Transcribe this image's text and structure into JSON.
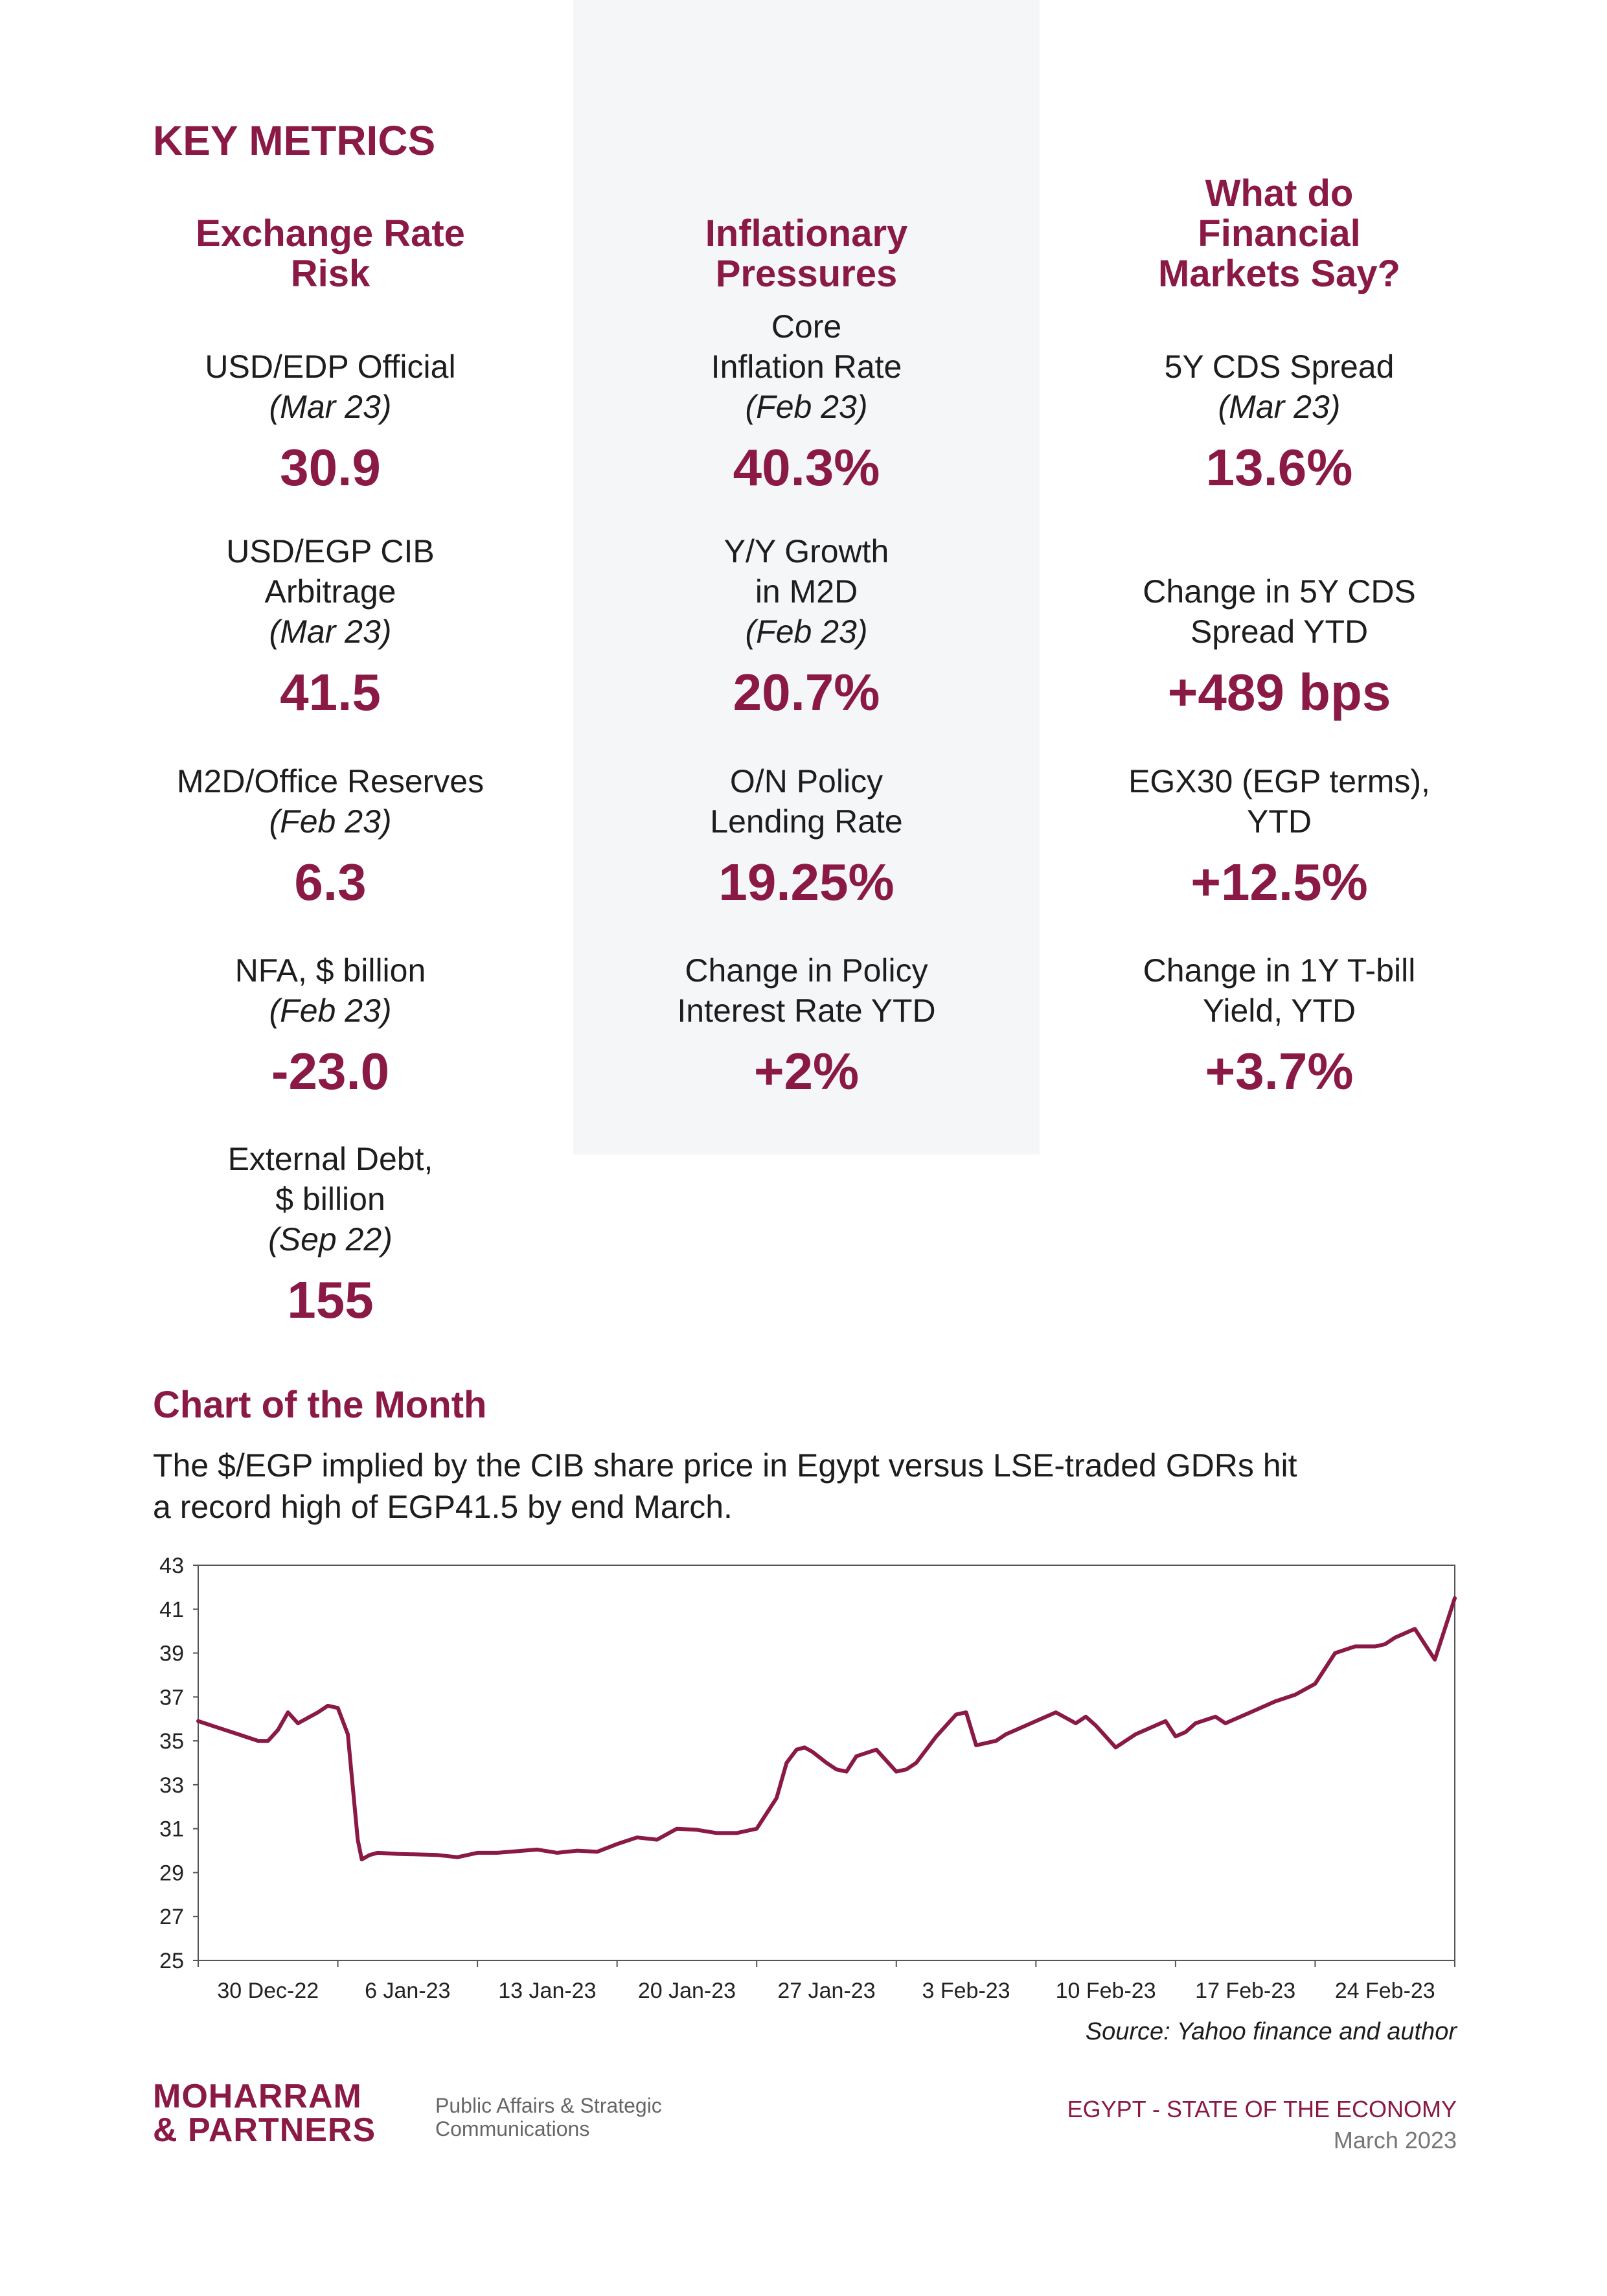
{
  "page": {
    "section_title": "KEY METRICS"
  },
  "columns": [
    {
      "heading": [
        "Exchange Rate",
        "Risk"
      ],
      "metrics": [
        {
          "label": [
            "USD/EDP Official"
          ],
          "date": "(Mar 23)",
          "value": "30.9"
        },
        {
          "label": [
            "USD/EGP CIB",
            "Arbitrage"
          ],
          "date": "(Mar 23)",
          "value": "41.5"
        },
        {
          "label": [
            "M2D/Office Reserves"
          ],
          "date": "(Feb 23)",
          "value": "6.3"
        },
        {
          "label": [
            "NFA, $ billion"
          ],
          "date": "(Feb 23)",
          "value": "-23.0"
        },
        {
          "label": [
            "External Debt,",
            "$ billion"
          ],
          "date": "(Sep 22)",
          "value": "155"
        }
      ]
    },
    {
      "heading": [
        "Inflationary",
        "Pressures"
      ],
      "metrics": [
        {
          "label": [
            "Core",
            "Inflation Rate"
          ],
          "date": "(Feb 23)",
          "value": "40.3%"
        },
        {
          "label": [
            "Y/Y Growth",
            "in M2D"
          ],
          "date": "(Feb 23)",
          "value": "20.7%"
        },
        {
          "label": [
            "O/N Policy",
            "Lending Rate"
          ],
          "date": "",
          "value": "19.25%"
        },
        {
          "label": [
            "Change in Policy",
            "Interest Rate YTD"
          ],
          "date": "",
          "value": "+2%"
        }
      ]
    },
    {
      "heading": [
        "What do",
        "Financial",
        "Markets Say?"
      ],
      "metrics": [
        {
          "label": [
            "5Y CDS Spread"
          ],
          "date": "(Mar 23)",
          "value": "13.6%"
        },
        {
          "label": [
            "Change in 5Y CDS",
            "Spread YTD"
          ],
          "date": "",
          "value": "+489 bps"
        },
        {
          "label": [
            "EGX30 (EGP terms),",
            "YTD"
          ],
          "date": "",
          "value": "+12.5%"
        },
        {
          "label": [
            "Change in 1Y T-bill",
            "Yield, YTD"
          ],
          "date": "",
          "value": "+3.7%"
        }
      ]
    }
  ],
  "chart_section": {
    "title": "Chart of the Month",
    "description_lines": [
      "The $/EGP implied by the CIB share price in Egypt versus LSE-traded GDRs hit",
      "a record high of EGP41.5 by end March."
    ],
    "source": "Source: Yahoo finance and author"
  },
  "chart_data": {
    "type": "line",
    "title": "",
    "xlabel": "",
    "ylabel": "",
    "ylim": [
      25,
      43
    ],
    "y_ticks": [
      25,
      27,
      29,
      31,
      33,
      35,
      37,
      39,
      41,
      43
    ],
    "x_tick_labels": [
      "30 Dec-22",
      "6 Jan-23",
      "13 Jan-23",
      "20 Jan-23",
      "27 Jan-23",
      "3 Feb-23",
      "10 Feb-23",
      "17 Feb-23",
      "24 Feb-23"
    ],
    "line_color": "#8a1a45",
    "grid": false,
    "x_range": [
      0,
      63
    ],
    "series": [
      {
        "x": [
          0,
          1,
          2,
          3,
          3.5,
          4,
          4.5,
          5,
          6,
          6.5,
          7,
          7.5,
          8,
          8.2,
          8.6,
          9,
          10,
          12,
          13,
          14,
          15,
          17,
          18,
          19,
          20,
          21,
          22,
          23,
          24,
          25,
          26,
          27,
          28,
          29,
          29.5,
          30,
          30.4,
          30.8,
          31.5,
          32,
          32.5,
          33,
          34,
          35,
          35.5,
          36,
          37,
          38,
          38.5,
          39,
          40,
          40.5,
          41,
          42,
          43,
          44,
          44.5,
          45,
          46,
          47,
          48,
          48.5,
          49,
          49.5,
          50,
          51,
          51.5,
          52,
          53,
          54,
          55,
          56,
          57,
          58,
          59,
          59.5,
          60,
          61,
          62,
          63
        ],
        "y": [
          35.9,
          35.6,
          35.3,
          35.0,
          35.0,
          35.5,
          36.3,
          35.8,
          36.3,
          36.6,
          36.5,
          35.3,
          30.5,
          29.6,
          29.8,
          29.9,
          29.85,
          29.8,
          29.7,
          29.9,
          29.9,
          30.05,
          29.9,
          30.0,
          29.95,
          30.3,
          30.6,
          30.5,
          31.0,
          30.95,
          30.8,
          30.8,
          31.0,
          32.4,
          34.0,
          34.6,
          34.7,
          34.5,
          34.0,
          33.7,
          33.6,
          34.3,
          34.6,
          33.6,
          33.7,
          34.0,
          35.2,
          36.2,
          36.3,
          34.8,
          35.0,
          35.3,
          35.5,
          35.9,
          36.3,
          35.8,
          36.1,
          35.7,
          34.7,
          35.3,
          35.7,
          35.9,
          35.2,
          35.4,
          35.8,
          36.1,
          35.8,
          36.0,
          36.4,
          36.8,
          37.1,
          37.6,
          39.0,
          39.3,
          39.3,
          39.4,
          39.7,
          40.1,
          38.7,
          41.5
        ]
      }
    ]
  },
  "footer": {
    "logo_line1": "MOHARRAM",
    "logo_line2": "& PARTNERS",
    "tagline_line1": "Public Affairs & Strategic",
    "tagline_line2": "Communications",
    "publication": "EGYPT - STATE OF THE ECONOMY",
    "date": "March 2023"
  }
}
